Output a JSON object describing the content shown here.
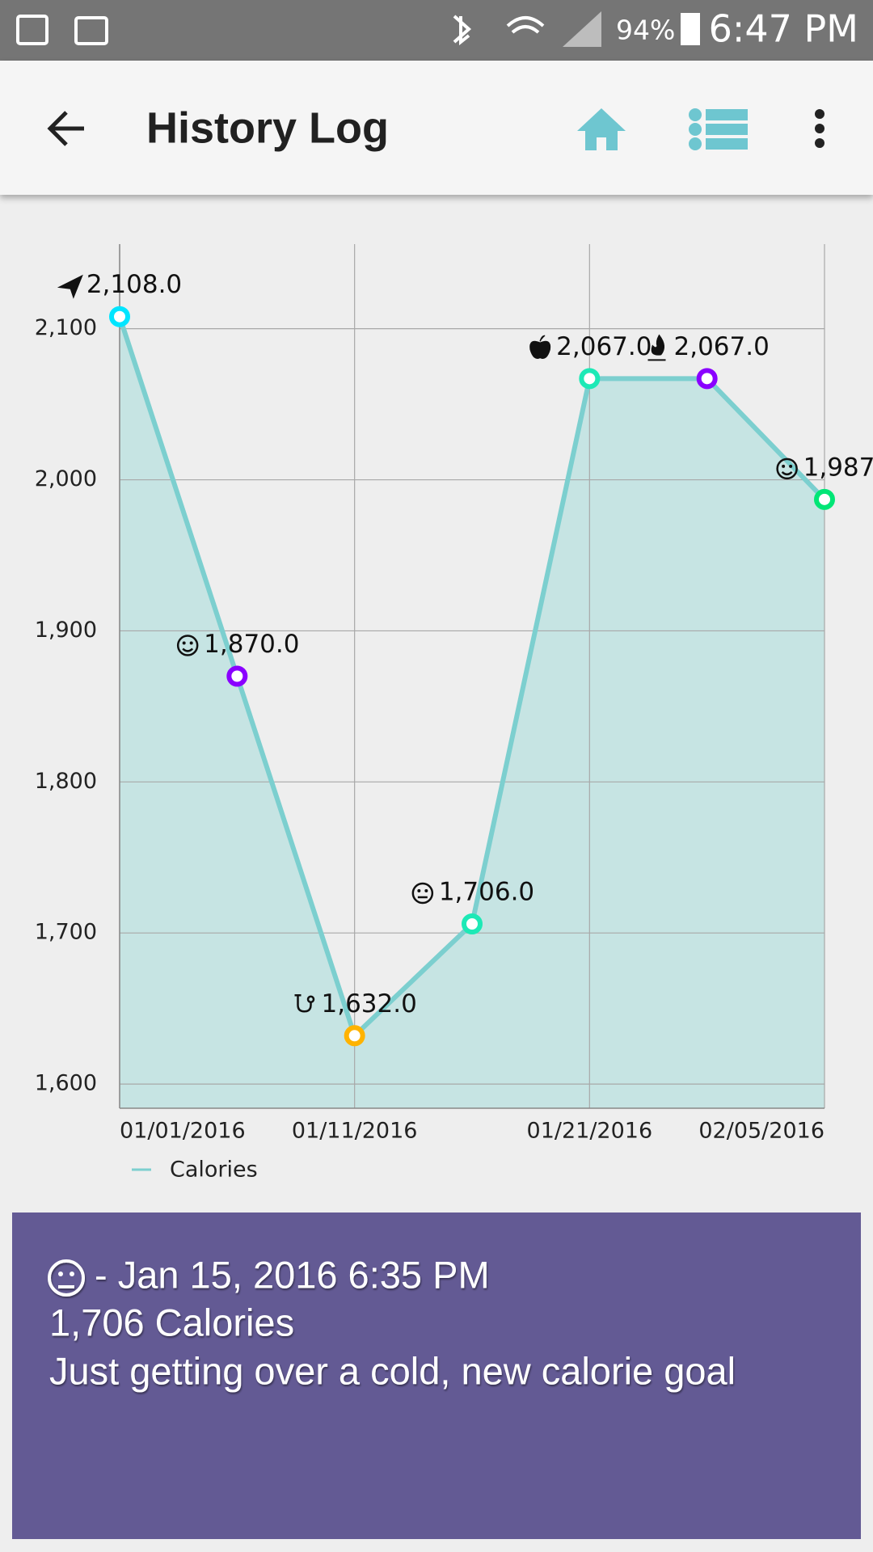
{
  "status_bar": {
    "battery": "94%",
    "time": "6:47 PM"
  },
  "app_bar": {
    "title": "History Log"
  },
  "chart_data": {
    "type": "line",
    "categories": [
      "01/01/2016",
      null,
      "01/11/2016",
      null,
      "01/21/2016",
      null,
      "02/05/2016"
    ],
    "series": [
      {
        "name": "Calories",
        "color": "#7ccfcf",
        "values": [
          2108,
          1870,
          1632,
          1706,
          2067,
          2067,
          1987
        ],
        "value_labels": [
          "2,108.0",
          "1,870.0",
          "1,632.0",
          "1,706.0",
          "2,067.0",
          "2,067.0",
          "1,987"
        ]
      }
    ],
    "point_colors": [
      "#00e5ff",
      "#8a00ff",
      "#ffb300",
      "#1de9b6",
      "#1de9b6",
      "#8a00ff",
      "#00e676"
    ],
    "area": true,
    "fill_color": "#c6e4e3",
    "ylim": [
      1584,
      2156
    ],
    "yticks": [
      {
        "value": 1600,
        "label": "1,600"
      },
      {
        "value": 1700,
        "label": "1,700"
      },
      {
        "value": 1800,
        "label": "1,800"
      },
      {
        "value": 1900,
        "label": "1,900"
      },
      {
        "value": 2000,
        "label": "2,000"
      },
      {
        "value": 2100,
        "label": "2,100"
      }
    ],
    "grid": true
  },
  "entry_card": {
    "timestamp": "- Jan 15, 2016 6:35 PM",
    "calories": "1,706 Calories",
    "note": "Just getting over a cold, new calorie goal"
  }
}
